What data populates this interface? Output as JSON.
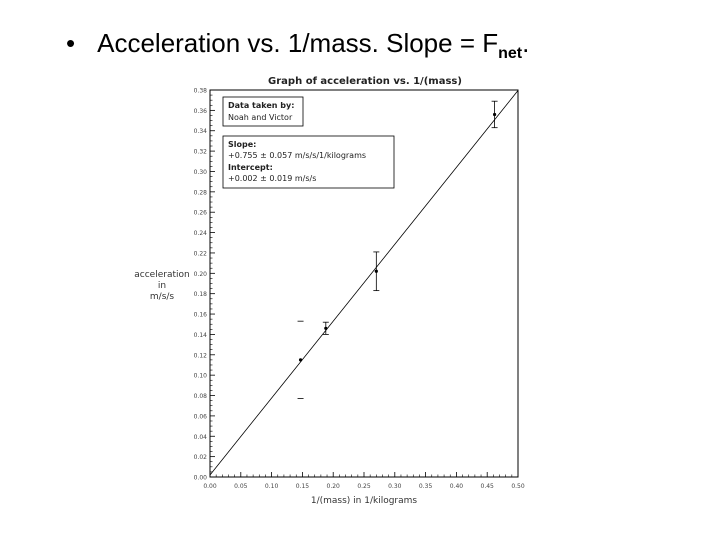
{
  "slide": {
    "bullet": "•",
    "title_text": "Acceleration vs. 1/mass. Slope = F",
    "title_sub": "net",
    "title_end": "."
  },
  "chart_data": {
    "type": "scatter",
    "title": "Graph of acceleration vs. 1/(mass)",
    "xlabel": "1/(mass) in 1/kilograms",
    "ylabel_lines": [
      "acceleration",
      "in",
      "m/s/s"
    ],
    "xlim": [
      0,
      0.5
    ],
    "ylim": [
      0,
      0.38
    ],
    "x_ticks": [
      "0.00",
      "0.05",
      "0.10",
      "0.15",
      "0.20",
      "0.25",
      "0.30",
      "0.35",
      "0.40",
      "0.45",
      "0.50"
    ],
    "y_ticks": [
      "0.00",
      "0.02",
      "0.04",
      "0.06",
      "0.08",
      "0.10",
      "0.12",
      "0.14",
      "0.16",
      "0.18",
      "0.20",
      "0.22",
      "0.24",
      "0.26",
      "0.28",
      "0.30",
      "0.32",
      "0.34",
      "0.36",
      "0.38"
    ],
    "points": [
      {
        "x": 0.147,
        "y": 0.115,
        "yerr": 0.038
      },
      {
        "x": 0.188,
        "y": 0.146,
        "yerr": 0.006
      },
      {
        "x": 0.27,
        "y": 0.202,
        "yerr": 0.019
      },
      {
        "x": 0.462,
        "y": 0.356,
        "yerr": 0.013
      }
    ],
    "fit": {
      "slope": 0.755,
      "intercept": 0.002
    },
    "legend": {
      "heading": "Data taken by:",
      "names": "Noah and Victor",
      "slope_label": "Slope:",
      "slope_value": "+0.755 ± 0.057 m/s/s/1/kilograms",
      "intercept_label": "Intercept:",
      "intercept_value": "+0.002 ± 0.019 m/s/s"
    }
  }
}
